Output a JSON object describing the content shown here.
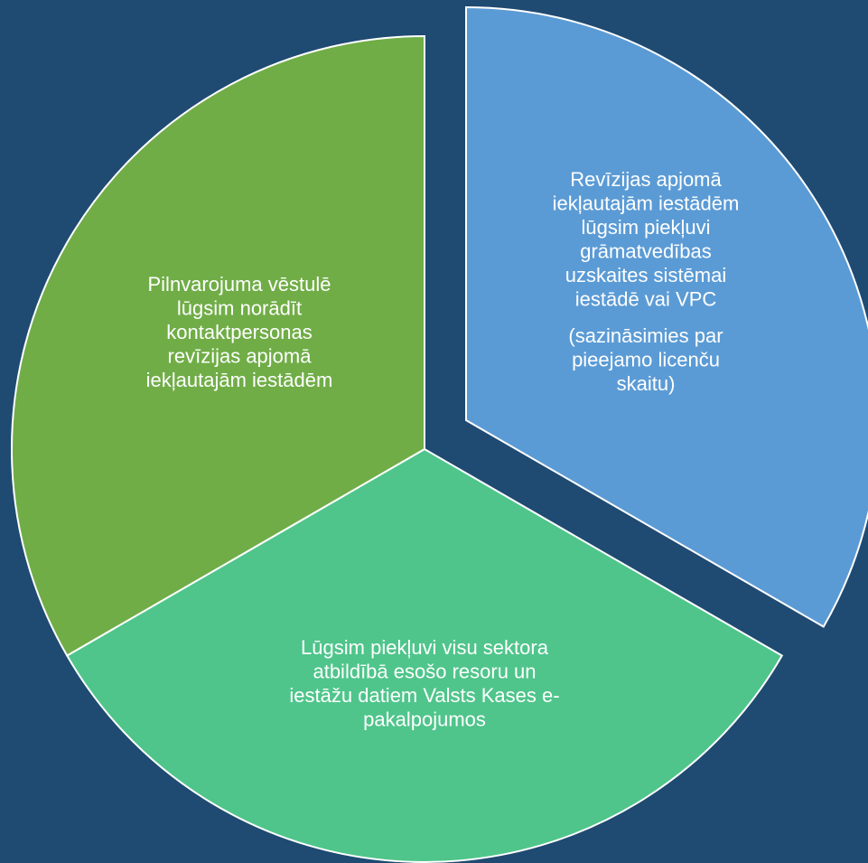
{
  "segments": [
    {
      "paragraphs": [
        [
          "Revīzijas apjomā",
          "iekļautajām iestādēm",
          "lūgsim piekļuvi",
          "grāmatvedības",
          "uzskaites sistēmai",
          "iestādē vai VPC"
        ],
        [
          "(sazināsimies par",
          "pieejamo licenču",
          "skaitu)"
        ]
      ]
    },
    {
      "paragraphs": [
        [
          "Lūgsim piekļuvi visu sektora",
          "atbildībā esošo resoru un",
          "iestāžu datiem Valsts Kases e-",
          "pakalpojumos"
        ]
      ]
    },
    {
      "paragraphs": [
        [
          "Pilnvarojuma vēstulē",
          "lūgsim norādīt",
          "kontaktpersonas",
          "revīzijas apjomā",
          "iekļautajām iestādēm"
        ]
      ]
    }
  ]
}
